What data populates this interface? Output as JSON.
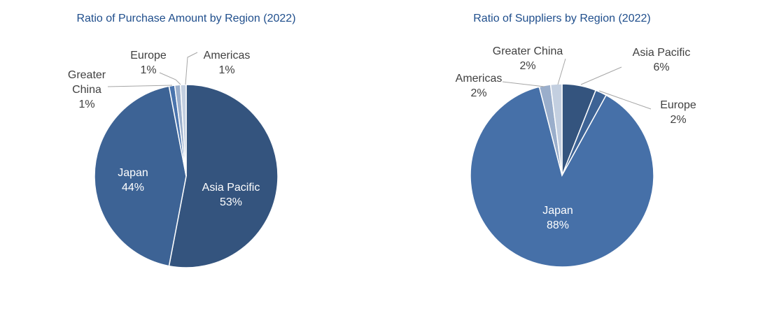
{
  "colors": {
    "title": "#1f4e8c",
    "label_dark": "#404040",
    "label_light": "#ffffff",
    "leader": "#a6a6a6",
    "slice_border": "#ffffff"
  },
  "chart_data": [
    {
      "type": "pie",
      "title": "Ratio of Purchase Amount by Region (2022)",
      "start": "12 o'clock",
      "direction": "clockwise",
      "slices": [
        {
          "name": "Asia Pacific",
          "value": 53,
          "label": "53%",
          "color": "#34547e",
          "label_inside": true
        },
        {
          "name": "Japan",
          "value": 44,
          "label": "44%",
          "color": "#3d6395",
          "label_inside": true
        },
        {
          "name": "Greater China",
          "value": 1,
          "label": "1%",
          "color": "#4a74ad",
          "label_inside": false
        },
        {
          "name": "Europe",
          "value": 1,
          "label": "1%",
          "color": "#9aaecb",
          "label_inside": false
        },
        {
          "name": "Americas",
          "value": 1,
          "label": "1%",
          "color": "#c3cfe0",
          "label_inside": false
        }
      ]
    },
    {
      "type": "pie",
      "title": "Ratio of Suppliers by Region (2022)",
      "start": "12 o'clock",
      "direction": "clockwise",
      "slices": [
        {
          "name": "Asia Pacific",
          "value": 6,
          "label": "6%",
          "color": "#34547e",
          "label_inside": false
        },
        {
          "name": "Europe",
          "value": 2,
          "label": "2%",
          "color": "#3d6395",
          "label_inside": false
        },
        {
          "name": "Japan",
          "value": 88,
          "label": "88%",
          "color": "#4670a8",
          "label_inside": true
        },
        {
          "name": "Americas",
          "value": 2,
          "label": "2%",
          "color": "#9aaecb",
          "label_inside": false
        },
        {
          "name": "Greater China",
          "value": 2,
          "label": "2%",
          "color": "#c3cfe0",
          "label_inside": false
        }
      ]
    }
  ]
}
